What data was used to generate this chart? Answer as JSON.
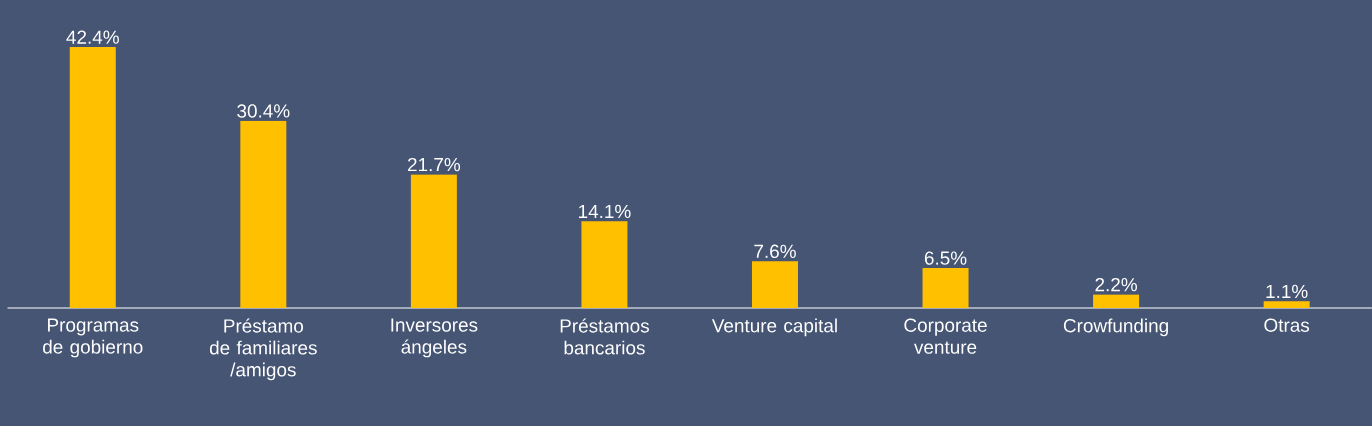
{
  "chart_data": {
    "type": "bar",
    "categories": [
      "Programas de gobierno",
      "Préstamo de familiares /amigos",
      "Inversores ángeles",
      "Préstamos bancarios",
      "Venture capital",
      "Corporate venture",
      "Crowfunding",
      "Otras"
    ],
    "values": [
      42.4,
      30.4,
      21.7,
      14.1,
      7.6,
      6.5,
      2.2,
      1.1
    ],
    "value_labels": [
      "42.4%",
      "30.4%",
      "21.7%",
      "14.1%",
      "7.6%",
      "6.5%",
      "2.2%",
      "1.1%"
    ],
    "color": "#ffc000"
  }
}
